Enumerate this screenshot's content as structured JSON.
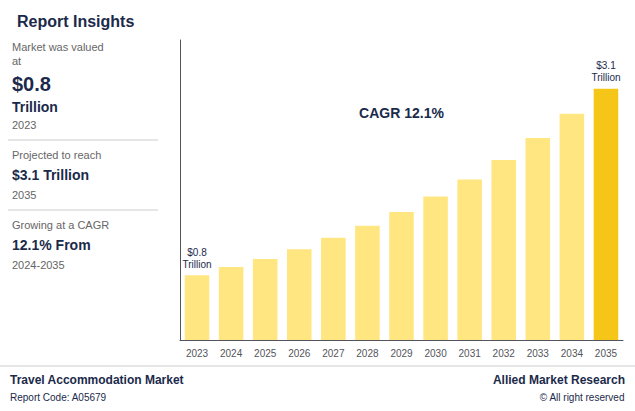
{
  "chart_data": {
    "type": "bar",
    "title": "Report Insights",
    "categories": [
      "2023",
      "2024",
      "2025",
      "2026",
      "2027",
      "2028",
      "2029",
      "2030",
      "2031",
      "2032",
      "2033",
      "2034",
      "2035"
    ],
    "values": [
      0.8,
      0.9,
      1.0,
      1.12,
      1.26,
      1.41,
      1.58,
      1.77,
      1.98,
      2.22,
      2.49,
      2.79,
      3.1
    ],
    "colors": [
      "#FFE680",
      "#FFE680",
      "#FFE680",
      "#FFE680",
      "#FFE680",
      "#FFE680",
      "#FFE680",
      "#FFE680",
      "#FFE680",
      "#FFE680",
      "#FFE680",
      "#FFE680",
      "#F5C518"
    ],
    "ylim": [
      0,
      3.7
    ],
    "grid": false,
    "tick_labels": "x",
    "annotations": [
      {
        "text": "$0.8\nTrillion",
        "x": "2023"
      },
      {
        "text": "$3.1\nTrillion",
        "x": "2035"
      },
      {
        "text": "CAGR 12.1%",
        "x": "2029",
        "y": 2.8
      },
      {
        "text": "Market was valued\nat"
      },
      {
        "text": "$0.8"
      },
      {
        "text": "Trillion"
      },
      {
        "text": "2023"
      },
      {
        "text": "Projected to reach"
      },
      {
        "text": "$3.1 Trillion"
      },
      {
        "text": "2035"
      },
      {
        "text": "Growing at a CAGR"
      },
      {
        "text": "12.1% From"
      },
      {
        "text": "2024-2035"
      },
      {
        "text": "Travel Accommodation Market"
      },
      {
        "text": "Report Code: A05679"
      },
      {
        "text": "Allied Market Research"
      },
      {
        "text": "© All right reserved"
      }
    ]
  }
}
